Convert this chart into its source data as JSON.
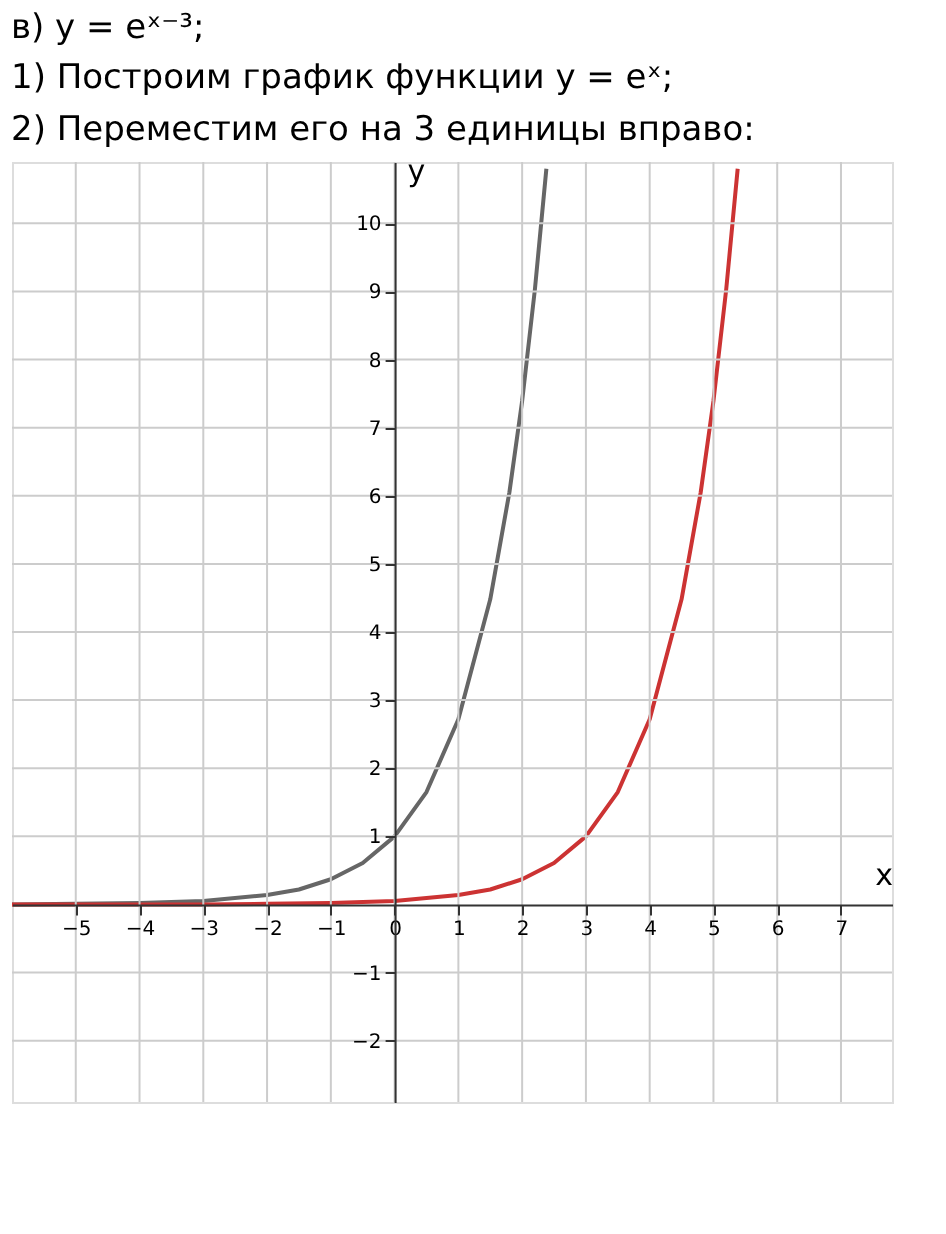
{
  "chart_data": {
    "type": "line",
    "title": "в) y = eˣ⁻³;",
    "annotations": [
      "1) Построим график функции y = eˣ;",
      "2) Переместим его на 3 единицы вправо:"
    ],
    "xlabel": "x",
    "ylabel": "y",
    "xlim": [
      -6,
      7.8
    ],
    "ylim": [
      -2.9,
      10.9
    ],
    "xticks": [
      -5,
      -4,
      -3,
      -2,
      -1,
      0,
      1,
      2,
      3,
      4,
      5,
      6,
      7
    ],
    "yticks": [
      -2,
      -1,
      1,
      2,
      3,
      4,
      5,
      6,
      7,
      8,
      9,
      10
    ],
    "grid": true,
    "line_style": "solid",
    "marker": "none",
    "series": [
      {
        "color": "#666666",
        "x": [
          -6,
          -5,
          -4,
          -3,
          -2,
          -1.5,
          -1,
          -0.5,
          0,
          0.5,
          1,
          1.5,
          1.8,
          2,
          2.2,
          2.38
        ],
        "values": [
          0,
          0.01,
          0.02,
          0.05,
          0.14,
          0.22,
          0.37,
          0.61,
          1,
          1.65,
          2.72,
          4.48,
          6.05,
          7.39,
          9.03,
          10.8
        ]
      },
      {
        "color": "#cc3333",
        "x": [
          -6,
          -3,
          -2,
          -1,
          0,
          1,
          1.5,
          2,
          2.5,
          3,
          3.5,
          4,
          4.5,
          4.8,
          5,
          5.2,
          5.38
        ],
        "values": [
          0,
          0,
          0.01,
          0.02,
          0.05,
          0.14,
          0.22,
          0.37,
          0.61,
          1,
          1.65,
          2.72,
          4.48,
          6.05,
          7.39,
          9.03,
          10.8
        ]
      }
    ]
  }
}
